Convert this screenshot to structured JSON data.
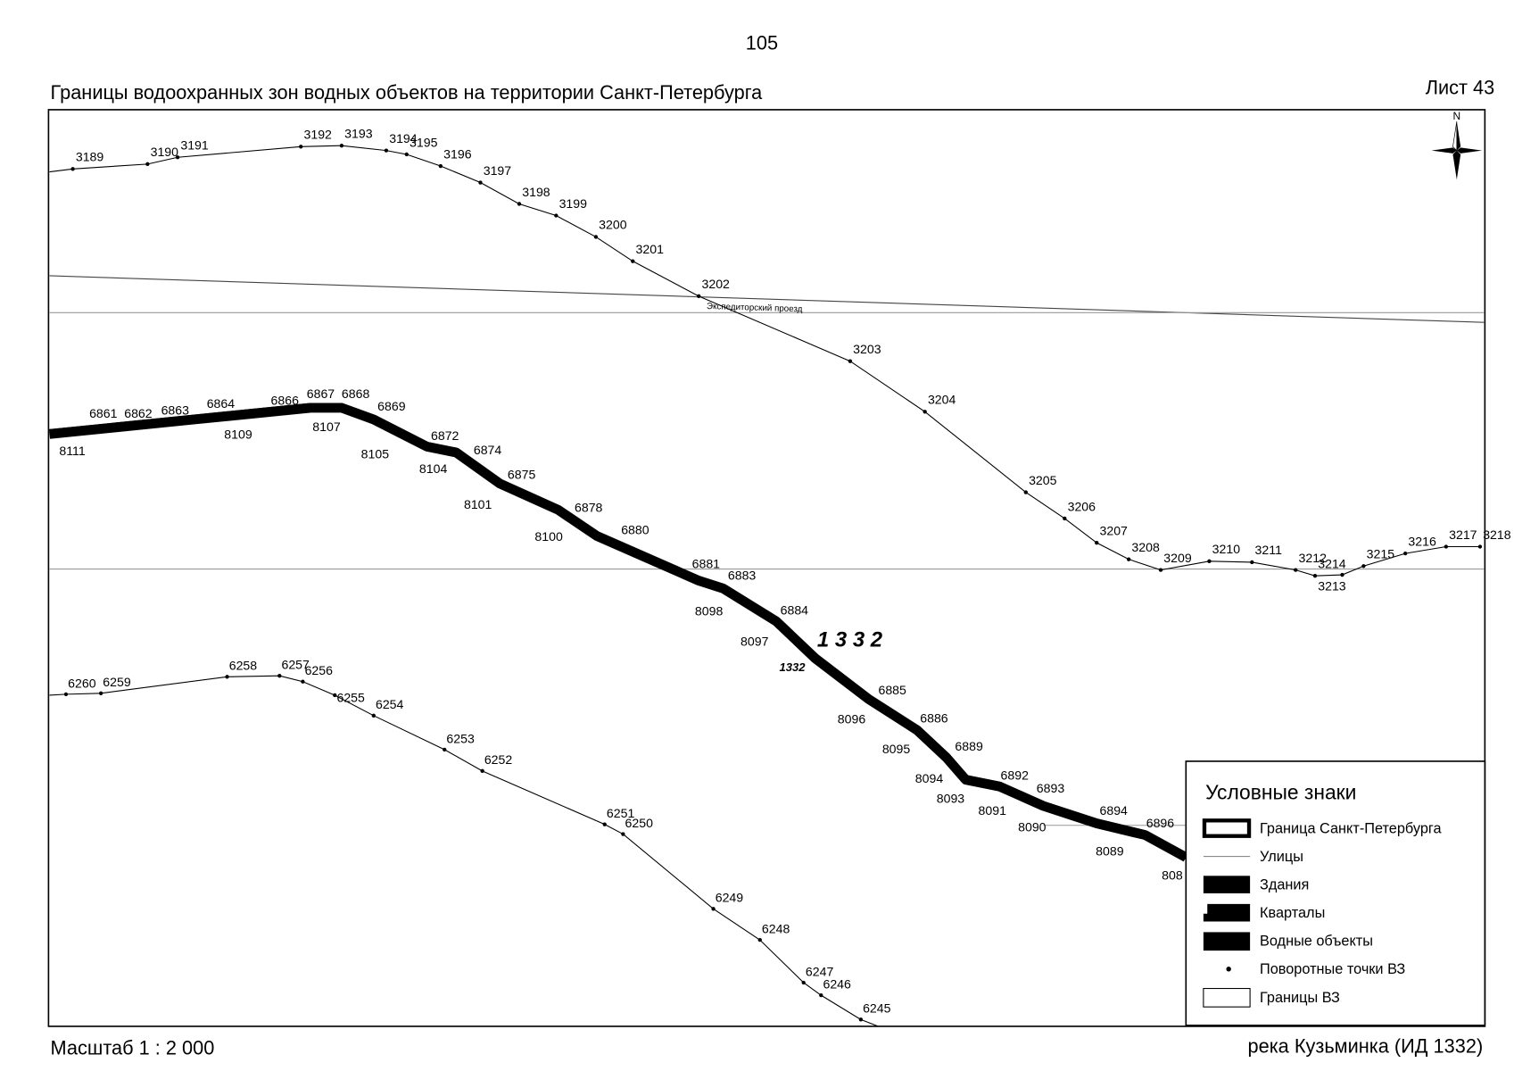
{
  "page_number": "105",
  "title": "Границы водоохранных зон водных объектов на территории Санкт-Петербурга",
  "sheet": "Лист 43",
  "scale": "Масштаб 1 : 2 000",
  "river_name": "река Кузьминка (ИД 1332)",
  "street_name": "Экспедиторский проезд",
  "zone_id_large": "1 3 3 2",
  "zone_id_small": "1332",
  "north": "N",
  "boundary_north": [
    "3189",
    "3190",
    "3191",
    "3192",
    "3193",
    "3194",
    "3195",
    "3196",
    "3197",
    "3198",
    "3199",
    "3200",
    "3201",
    "3202",
    "3203",
    "3204",
    "3205",
    "3206",
    "3207",
    "3208",
    "3209",
    "3210",
    "3211",
    "3212",
    "3214",
    "3213",
    "3215",
    "3216",
    "3217",
    "3218"
  ],
  "boundary_south": [
    "6260",
    "6259",
    "6258",
    "6257",
    "6256",
    "6255",
    "6254",
    "6253",
    "6252",
    "6251",
    "6250",
    "6249",
    "6248",
    "6247",
    "6246",
    "6245"
  ],
  "river_upper": [
    "6861",
    "6862",
    "6863",
    "6864",
    "6866",
    "6867",
    "6868",
    "6869",
    "6872",
    "6874",
    "6875",
    "6878",
    "6880",
    "6881",
    "6883",
    "6884",
    "6885",
    "6886",
    "6889",
    "6892",
    "6893",
    "6894",
    "6896"
  ],
  "river_lower": [
    "8111",
    "8109",
    "8107",
    "8105",
    "8104",
    "8101",
    "8100",
    "8098",
    "8097",
    "8096",
    "8095",
    "8094",
    "8093",
    "8091",
    "8090",
    "8089",
    "808"
  ],
  "legend": {
    "title": "Условные знаки",
    "items": [
      "Граница Санкт-Петербурга",
      "Улицы",
      "Здания",
      "Кварталы",
      "Водные объекты",
      "Поворотные точки ВЗ",
      "Границы ВЗ"
    ]
  }
}
